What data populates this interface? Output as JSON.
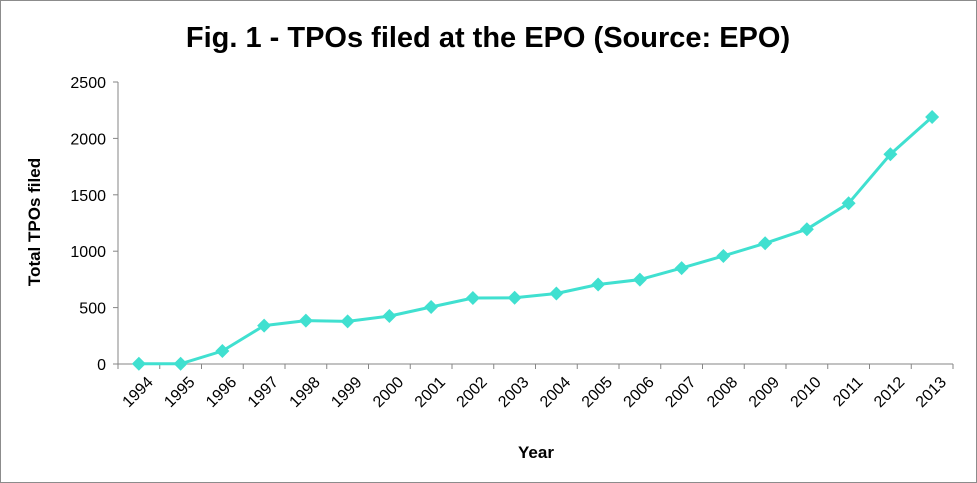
{
  "chart_data": {
    "type": "line",
    "title": "Fig. 1 - TPOs filed at the EPO (Source: EPO)",
    "xlabel": "Year",
    "ylabel": "Total TPOs filed",
    "ylim": [
      0,
      2500
    ],
    "yticks": [
      "0",
      "500",
      "1000",
      "1500",
      "2000",
      "2500"
    ],
    "grid": false,
    "legend": "none",
    "categories": [
      "1994",
      "1995",
      "1996",
      "1997",
      "1998",
      "1999",
      "2000",
      "2001",
      "2002",
      "2003",
      "2004",
      "2005",
      "2006",
      "2007",
      "2008",
      "2009",
      "2010",
      "2011",
      "2012",
      "2013"
    ],
    "series": [
      {
        "values": [
          2,
          2,
          115,
          340,
          385,
          378,
          425,
          505,
          585,
          587,
          625,
          705,
          748,
          850,
          958,
          1070,
          1195,
          1425,
          1860,
          2190
        ],
        "color": "#40E0D0",
        "marker": "diamond"
      }
    ]
  }
}
